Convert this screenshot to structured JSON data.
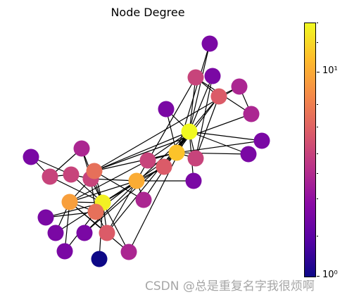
{
  "title": "Node Degree",
  "colorbar": {
    "colormap": "plasma",
    "scale": "log",
    "range": [
      1,
      17
    ],
    "tick_labels": [
      "10¹",
      "10⁰"
    ]
  },
  "graph": {
    "node_count": 34,
    "edge_count": 78,
    "node_color_by": "degree"
  },
  "watermark": "CSDN @总是重复名字我很烦啊"
}
